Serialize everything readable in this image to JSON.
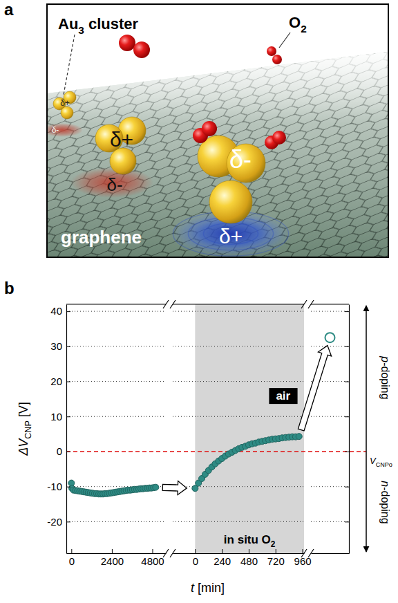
{
  "panel_a": {
    "letter": "a",
    "cluster_label": {
      "main": "Au",
      "sub": "3",
      "rest": " cluster"
    },
    "o2_label": {
      "main": "O",
      "sub": "2"
    },
    "clusters": [
      {
        "charges": [
          "δ+",
          "δ-"
        ]
      },
      {
        "charges": [
          "δ+",
          "δ-"
        ]
      },
      {
        "charges": [
          "δ-",
          "δ+"
        ]
      }
    ],
    "sheet_label": "graphene"
  },
  "panel_b": {
    "letter": "b"
  },
  "chart_data": [
    {
      "type": "scatter",
      "color": "#2e8b84",
      "marker": "circle",
      "x": [
        0,
        30,
        125,
        250,
        375,
        500,
        625,
        750,
        875,
        1000,
        1125,
        1250,
        1375,
        1500,
        1625,
        1750,
        1875,
        2000,
        2125,
        2250,
        2375,
        2500,
        2625,
        2750,
        2875,
        3000,
        3125,
        3250,
        3375,
        3500,
        3625,
        3750,
        3875,
        4000,
        4125,
        4250,
        4375,
        4500,
        4625,
        4750,
        4875,
        5000
      ],
      "values": [
        -9,
        -10.5,
        -11.0,
        -11.1,
        -11.2,
        -11.3,
        -11.4,
        -11.5,
        -11.6,
        -11.7,
        -11.8,
        -11.9,
        -12.0,
        -12.0,
        -12.1,
        -12.1,
        -12.1,
        -12.0,
        -12.0,
        -11.9,
        -11.8,
        -11.7,
        -11.6,
        -11.5,
        -11.4,
        -11.3,
        -11.2,
        -11.1,
        -11.0,
        -11.0,
        -10.9,
        -10.8,
        -10.8,
        -10.7,
        -10.6,
        -10.6,
        -10.5,
        -10.5,
        -10.4,
        -10.4,
        -10.3,
        -10.2
      ],
      "xlim": [
        -300,
        5600
      ],
      "xticks": [
        0,
        2400,
        4800
      ],
      "ylim": [
        -29,
        42
      ],
      "yticks": [
        -20,
        -10,
        0,
        10,
        20,
        30,
        40
      ],
      "grid": true,
      "y_label": {
        "main": "ΔV",
        "sub": "CNP",
        "rest": " [V]"
      },
      "x_label": {
        "main": "t",
        "rest": " [min]"
      }
    },
    {
      "type": "scatter",
      "color": "#2e8b84",
      "marker": "circle",
      "x": [
        0,
        30,
        60,
        90,
        120,
        150,
        180,
        210,
        240,
        270,
        300,
        330,
        360,
        390,
        420,
        450,
        480,
        510,
        540,
        570,
        600,
        630,
        660,
        690,
        720,
        750,
        780,
        810,
        840,
        870,
        900,
        930
      ],
      "values": [
        -10.5,
        -9.0,
        -7.7,
        -6.5,
        -5.4,
        -4.4,
        -3.5,
        -2.7,
        -2.0,
        -1.3,
        -0.7,
        -0.2,
        0.3,
        0.8,
        1.2,
        1.5,
        1.9,
        2.2,
        2.4,
        2.7,
        2.9,
        3.1,
        3.3,
        3.5,
        3.6,
        3.7,
        3.9,
        4.0,
        4.1,
        4.2,
        4.2,
        4.3
      ],
      "xlim": [
        -200,
        975
      ],
      "xticks": [
        0,
        240,
        480,
        720,
        960
      ],
      "ylim": [
        -29,
        42
      ],
      "yticks": [
        -20,
        -10,
        0,
        10,
        20,
        30,
        40
      ],
      "grid": true,
      "tick_labels": "x",
      "shaded_range": [
        0,
        975
      ],
      "annotation": {
        "main": "in situ O",
        "sub": "2"
      }
    },
    {
      "type": "scatter",
      "color": "#2e8b84",
      "marker": "open_circle",
      "categories": [
        null
      ],
      "values": [
        32.5
      ],
      "ylim": [
        -29,
        42
      ],
      "yticks": [
        -20,
        -10,
        0,
        10,
        20,
        30,
        40
      ],
      "grid": true,
      "tick_labels": false,
      "annotation": "air",
      "hline": {
        "value": 0,
        "label": {
          "main": "V",
          "sub": "CNPo"
        }
      },
      "doping_labels": [
        "p-doping",
        "n-doping"
      ]
    }
  ]
}
